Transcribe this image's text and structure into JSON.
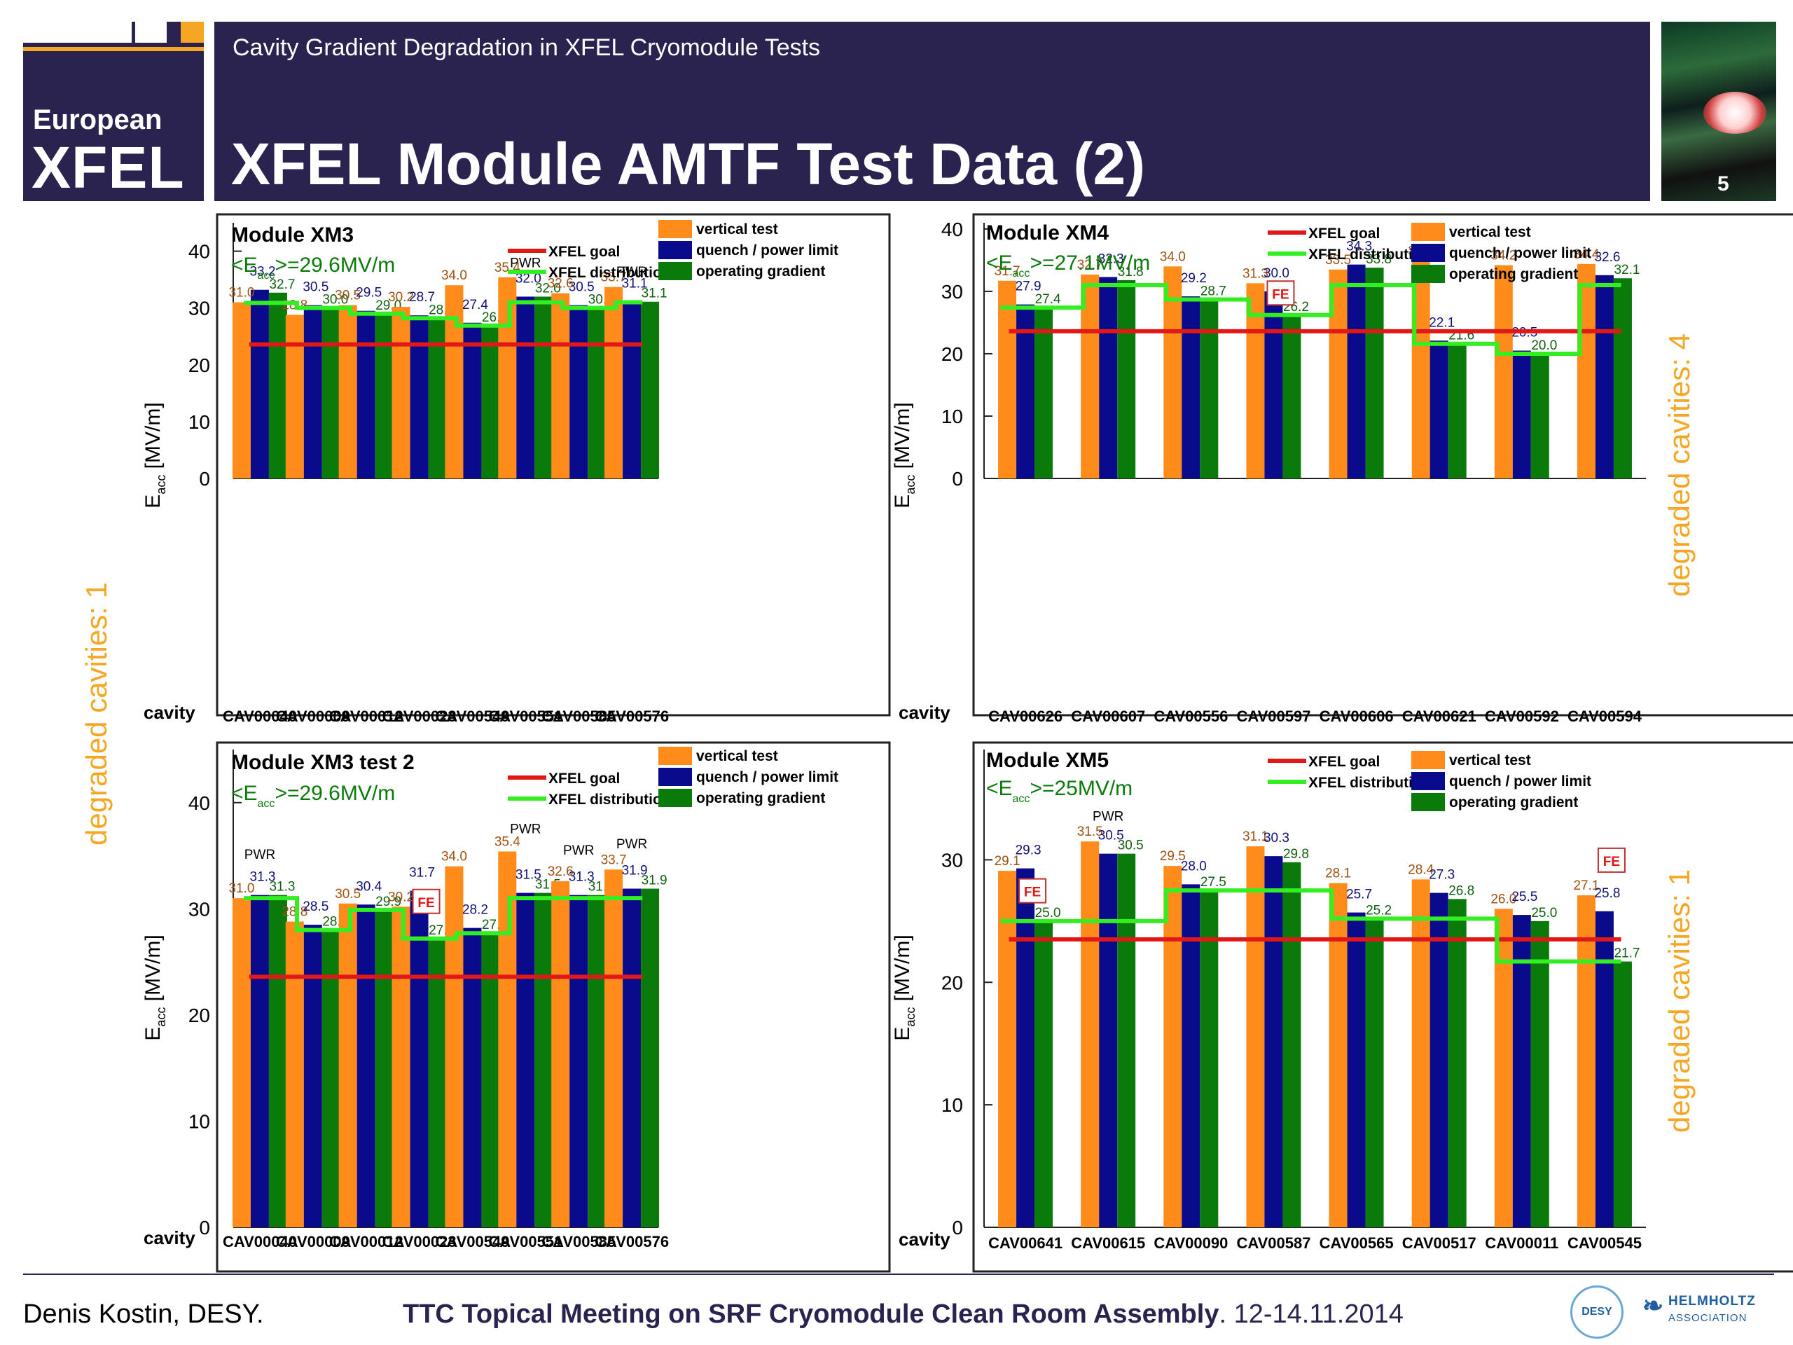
{
  "header": {
    "subtitle": "Cavity Gradient Degradation in XFEL Cryomodule Tests",
    "title": "XFEL Module AMTF Test Data (2)",
    "logo_line1": "European",
    "logo_line2": "XFEL",
    "slide_number": "5"
  },
  "side_labels": {
    "left": "degraded cavities: 1",
    "right_top": "degraded cavities: 4",
    "right_bottom": "degraded cavities: 1"
  },
  "footer": {
    "author": "Denis Kostin, DESY.",
    "meeting_bold": "TTC Topical Meeting on SRF Cryomodule Clean Room Assembly",
    "meeting_date": ". 12-14.11.2014",
    "desy": "DESY",
    "helmholtz_1": "HELMHOLTZ",
    "helmholtz_2": "ASSOCIATION"
  },
  "colors": {
    "vertical": "#ff8c1a",
    "quench": "#0a0a8c",
    "operating": "#0a7a0a",
    "goal": "#e01818",
    "distribution": "#33ee22",
    "vertical_label": "#a05010",
    "quench_label": "#10107a",
    "operating_label": "#106010"
  },
  "chart_data": [
    {
      "type": "bar",
      "title": "Module XM3",
      "mean_label_prefix": "<E",
      "mean_label_sub": "acc",
      "mean_label_suffix": ">=29.6MV/m",
      "ylabel_main": "E",
      "ylabel_sub": "acc",
      "ylabel_unit": " [MV/m]",
      "xlabel": "cavity",
      "ylim": [
        0,
        45
      ],
      "yticks": [
        "0",
        "10",
        "20",
        "30",
        "40"
      ],
      "legend": {
        "goal": "XFEL goal",
        "distribution": "XFEL distribution",
        "vertical": "vertical test",
        "quench": "quench / power limit",
        "operating": "operating gradient"
      },
      "categories": [
        "CAV00040",
        "CAV00009",
        "CAV00012",
        "CAV00023",
        "CAV00549",
        "CAV00551",
        "CAV00585",
        "CAV00576"
      ],
      "vertical": [
        31.0,
        28.8,
        30.5,
        30.2,
        34.0,
        35.4,
        32.6,
        33.7
      ],
      "quench": [
        33.2,
        30.5,
        29.5,
        28.7,
        27.4,
        32.0,
        30.5,
        31.1
      ],
      "operating": [
        32.7,
        30.0,
        29.0,
        28.2,
        26.9,
        32.0,
        30.0,
        31.1
      ],
      "vertical_labels": [
        "31.0",
        "28.8",
        "30.5",
        "30.2",
        "34.0",
        "35.4",
        "32.6",
        "33.7"
      ],
      "quench_labels": [
        "33.2",
        "30.5",
        "29.5",
        "28.7",
        "27.4",
        "32.0",
        "30.5",
        "31.1"
      ],
      "operating_labels": [
        "32.7",
        "30.0",
        "29.0",
        "28.2",
        "26.9",
        "32.0",
        "30.0",
        "31.1"
      ],
      "distribution": [
        30.9,
        30.0,
        29.0,
        28.2,
        26.9,
        31.0,
        30.0,
        31.0
      ],
      "goal": 23.6,
      "annotations": [
        {
          "category": "CAV00551",
          "text": "PWR",
          "y": 37.2
        },
        {
          "category": "CAV00576",
          "text": "PWR",
          "y": 35.6
        }
      ],
      "fe": []
    },
    {
      "type": "bar",
      "title": "Module XM4",
      "mean_label_prefix": "<E",
      "mean_label_sub": "acc",
      "mean_label_suffix": ">=27.1MV/m",
      "ylabel_main": "E",
      "ylabel_sub": "acc",
      "ylabel_unit": " [MV/m]",
      "xlabel": "cavity",
      "ylim": [
        0,
        41
      ],
      "yticks": [
        "0",
        "10",
        "20",
        "30",
        "40"
      ],
      "legend": {
        "goal": "XFEL goal",
        "distribution": "XFEL distribution",
        "vertical": "vertical test",
        "quench": "quench / power limit",
        "operating": "operating gradient"
      },
      "categories": [
        "CAV00626",
        "CAV00607",
        "CAV00556",
        "CAV00597",
        "CAV00606",
        "CAV00621",
        "CAV00592",
        "CAV00594"
      ],
      "vertical": [
        31.7,
        32.7,
        34.0,
        31.3,
        33.5,
        34.9,
        34.2,
        34.4
      ],
      "quench": [
        27.9,
        32.3,
        29.2,
        30.0,
        34.3,
        22.1,
        20.5,
        32.6
      ],
      "operating": [
        27.4,
        31.8,
        28.7,
        26.2,
        33.8,
        21.6,
        20.0,
        32.1
      ],
      "vertical_labels": [
        "31.7",
        "32.7",
        "34.0",
        "31.3",
        "33.5",
        "34.9",
        "34.2",
        "34.4"
      ],
      "quench_labels": [
        "27.9",
        "32.3",
        "29.2",
        "30.0",
        "34.3",
        "22.1",
        "20.5",
        "32.6"
      ],
      "operating_labels": [
        "27.4",
        "31.8",
        "28.7",
        "26.2",
        "33.8",
        "21.6",
        "20.0",
        "32.1"
      ],
      "distribution": [
        27.4,
        31.0,
        28.7,
        26.2,
        31.0,
        21.6,
        20.0,
        31.0
      ],
      "goal": 23.6,
      "annotations": [],
      "fe": [
        {
          "category": "CAV00597",
          "text": "FE",
          "y": 29.4
        }
      ]
    },
    {
      "type": "bar",
      "title": "Module XM3 test 2",
      "mean_label_prefix": "<E",
      "mean_label_sub": "acc",
      "mean_label_suffix": ">=29.6MV/m",
      "ylabel_main": "E",
      "ylabel_sub": "acc",
      "ylabel_unit": " [MV/m]",
      "xlabel": "cavity",
      "ylim": [
        0,
        45
      ],
      "yticks": [
        "0",
        "10",
        "20",
        "30",
        "40"
      ],
      "legend": {
        "goal": "XFEL goal",
        "distribution": "XFEL distribution",
        "vertical": "vertical test",
        "quench": "quench / power limit",
        "operating": "operating gradient"
      },
      "categories": [
        "CAV00040",
        "CAV00009",
        "CAV00012",
        "CAV00023",
        "CAV00549",
        "CAV00551",
        "CAV00585",
        "CAV00576"
      ],
      "vertical": [
        31.0,
        28.8,
        30.5,
        30.2,
        34.0,
        35.4,
        32.6,
        33.7
      ],
      "quench": [
        31.3,
        28.5,
        30.4,
        31.7,
        28.2,
        31.5,
        31.3,
        31.9
      ],
      "operating": [
        31.3,
        28.0,
        29.9,
        27.2,
        27.7,
        31.5,
        31.3,
        31.9
      ],
      "vertical_labels": [
        "31.0",
        "28.8",
        "30.5",
        "30.2",
        "34.0",
        "35.4",
        "32.6",
        "33.7"
      ],
      "quench_labels": [
        "31.3",
        "28.5",
        "30.4",
        "31.7",
        "28.2",
        "31.5",
        "31.3",
        "31.9"
      ],
      "operating_labels": [
        "31.3",
        "28.0",
        "29.9",
        "27.2",
        "27.7",
        "31.5",
        "31.3",
        "31.9"
      ],
      "distribution": [
        31.0,
        28.0,
        29.9,
        27.2,
        27.7,
        31.0,
        31.0,
        31.0
      ],
      "goal": 23.6,
      "annotations": [
        {
          "category": "CAV00040",
          "text": "PWR",
          "y": 34.7
        },
        {
          "category": "CAV00551",
          "text": "PWR",
          "y": 37.1
        },
        {
          "category": "CAV00585",
          "text": "PWR",
          "y": 35.1
        },
        {
          "category": "CAV00576",
          "text": "PWR",
          "y": 35.7
        }
      ],
      "fe": [
        {
          "category": "CAV00023",
          "text": "FE",
          "y": 30.5
        }
      ]
    },
    {
      "type": "bar",
      "title": "Module XM5",
      "mean_label_prefix": "<E",
      "mean_label_sub": "acc",
      "mean_label_suffix": ">=25MV/m",
      "ylabel_main": "E",
      "ylabel_sub": "acc",
      "ylabel_unit": " [MV/m]",
      "xlabel": "cavity",
      "ylim": [
        0,
        39
      ],
      "yticks": [
        "0",
        "10",
        "20",
        "30"
      ],
      "legend": {
        "goal": "XFEL goal",
        "distribution": "XFEL distribution",
        "vertical": "vertical test",
        "quench": "quench / power limit",
        "operating": "operating gradient"
      },
      "categories": [
        "CAV00641",
        "CAV00615",
        "CAV00090",
        "CAV00587",
        "CAV00565",
        "CAV00517",
        "CAV00011",
        "CAV00545"
      ],
      "vertical": [
        29.1,
        31.5,
        29.5,
        31.1,
        28.1,
        28.4,
        26.0,
        27.1
      ],
      "quench": [
        29.3,
        30.5,
        28.0,
        30.3,
        25.7,
        27.3,
        25.5,
        25.8
      ],
      "operating": [
        25.0,
        30.5,
        27.5,
        29.8,
        25.2,
        26.8,
        25.0,
        21.7
      ],
      "vertical_labels": [
        "29.1",
        "31.5",
        "29.5",
        "31.1",
        "28.1",
        "28.4",
        "26.0",
        "27.1"
      ],
      "quench_labels": [
        "29.3",
        "30.5",
        "28.0",
        "30.3",
        "25.7",
        "27.3",
        "25.5",
        "25.8"
      ],
      "operating_labels": [
        "25.0",
        "30.5",
        "27.5",
        "29.8",
        "25.2",
        "26.8",
        "25.0",
        "21.7"
      ],
      "distribution": [
        25.0,
        25.0,
        27.5,
        27.5,
        25.2,
        25.2,
        21.7,
        21.7
      ],
      "goal": 23.5,
      "annotations": [
        {
          "category": "CAV00615",
          "text": "PWR",
          "y": 33.2
        }
      ],
      "fe": [
        {
          "category": "CAV00641",
          "text": "FE",
          "y": 27.3
        },
        {
          "category": "CAV00545",
          "text": "FE",
          "y": 29.8
        }
      ]
    }
  ]
}
